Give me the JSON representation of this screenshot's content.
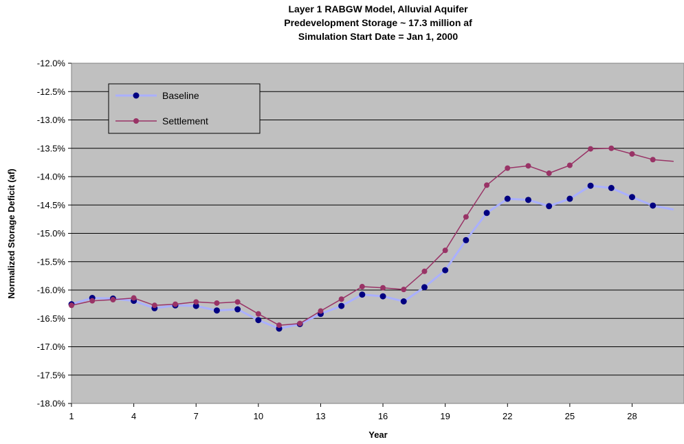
{
  "chart_data": {
    "type": "line",
    "title": [
      "Layer 1 RABGW Model, Alluvial Aquifer",
      "Predevelopment Storage ~ 17.3 million af",
      "Simulation Start Date = Jan 1, 2000"
    ],
    "xlabel": "Year",
    "ylabel": "Normalized Storage Deficit (af)",
    "x": [
      1,
      2,
      3,
      4,
      5,
      6,
      7,
      8,
      9,
      10,
      11,
      12,
      13,
      14,
      15,
      16,
      17,
      18,
      19,
      20,
      21,
      22,
      23,
      24,
      25,
      26,
      27,
      28,
      29,
      30
    ],
    "xticks": [
      "1",
      "4",
      "7",
      "10",
      "13",
      "16",
      "19",
      "22",
      "25",
      "28"
    ],
    "xlim": [
      1,
      30
    ],
    "ylim": [
      -18.0,
      -12.0
    ],
    "yticks": [
      "-12.0%",
      "-12.5%",
      "-13.0%",
      "-13.5%",
      "-14.0%",
      "-14.5%",
      "-15.0%",
      "-15.5%",
      "-16.0%",
      "-16.5%",
      "-17.0%",
      "-17.5%",
      "-18.0%"
    ],
    "grid": true,
    "legend_position": "top-left",
    "series": [
      {
        "name": "Baseline",
        "color": "#aab0ff",
        "marker_color": "#000080",
        "values": [
          -16.25,
          -16.14,
          -16.15,
          -16.19,
          -16.32,
          -16.27,
          -16.28,
          -16.36,
          -16.34,
          -16.53,
          -16.68,
          -16.6,
          -16.42,
          -16.28,
          -16.08,
          -16.11,
          -16.2,
          -15.95,
          -15.65,
          -15.12,
          -14.64,
          -14.39,
          -14.41,
          -14.52,
          -14.39,
          -14.16,
          -14.2,
          -14.36,
          -14.51,
          -14.58
        ]
      },
      {
        "name": "Settlement",
        "color": "#993366",
        "marker_color": "#993366",
        "values": [
          -16.27,
          -16.19,
          -16.17,
          -16.14,
          -16.27,
          -16.25,
          -16.21,
          -16.23,
          -16.21,
          -16.42,
          -16.62,
          -16.59,
          -16.37,
          -16.16,
          -15.94,
          -15.96,
          -15.99,
          -15.67,
          -15.3,
          -14.71,
          -14.15,
          -13.85,
          -13.81,
          -13.94,
          -13.8,
          -13.51,
          -13.5,
          -13.6,
          -13.7,
          -13.73
        ]
      }
    ]
  }
}
